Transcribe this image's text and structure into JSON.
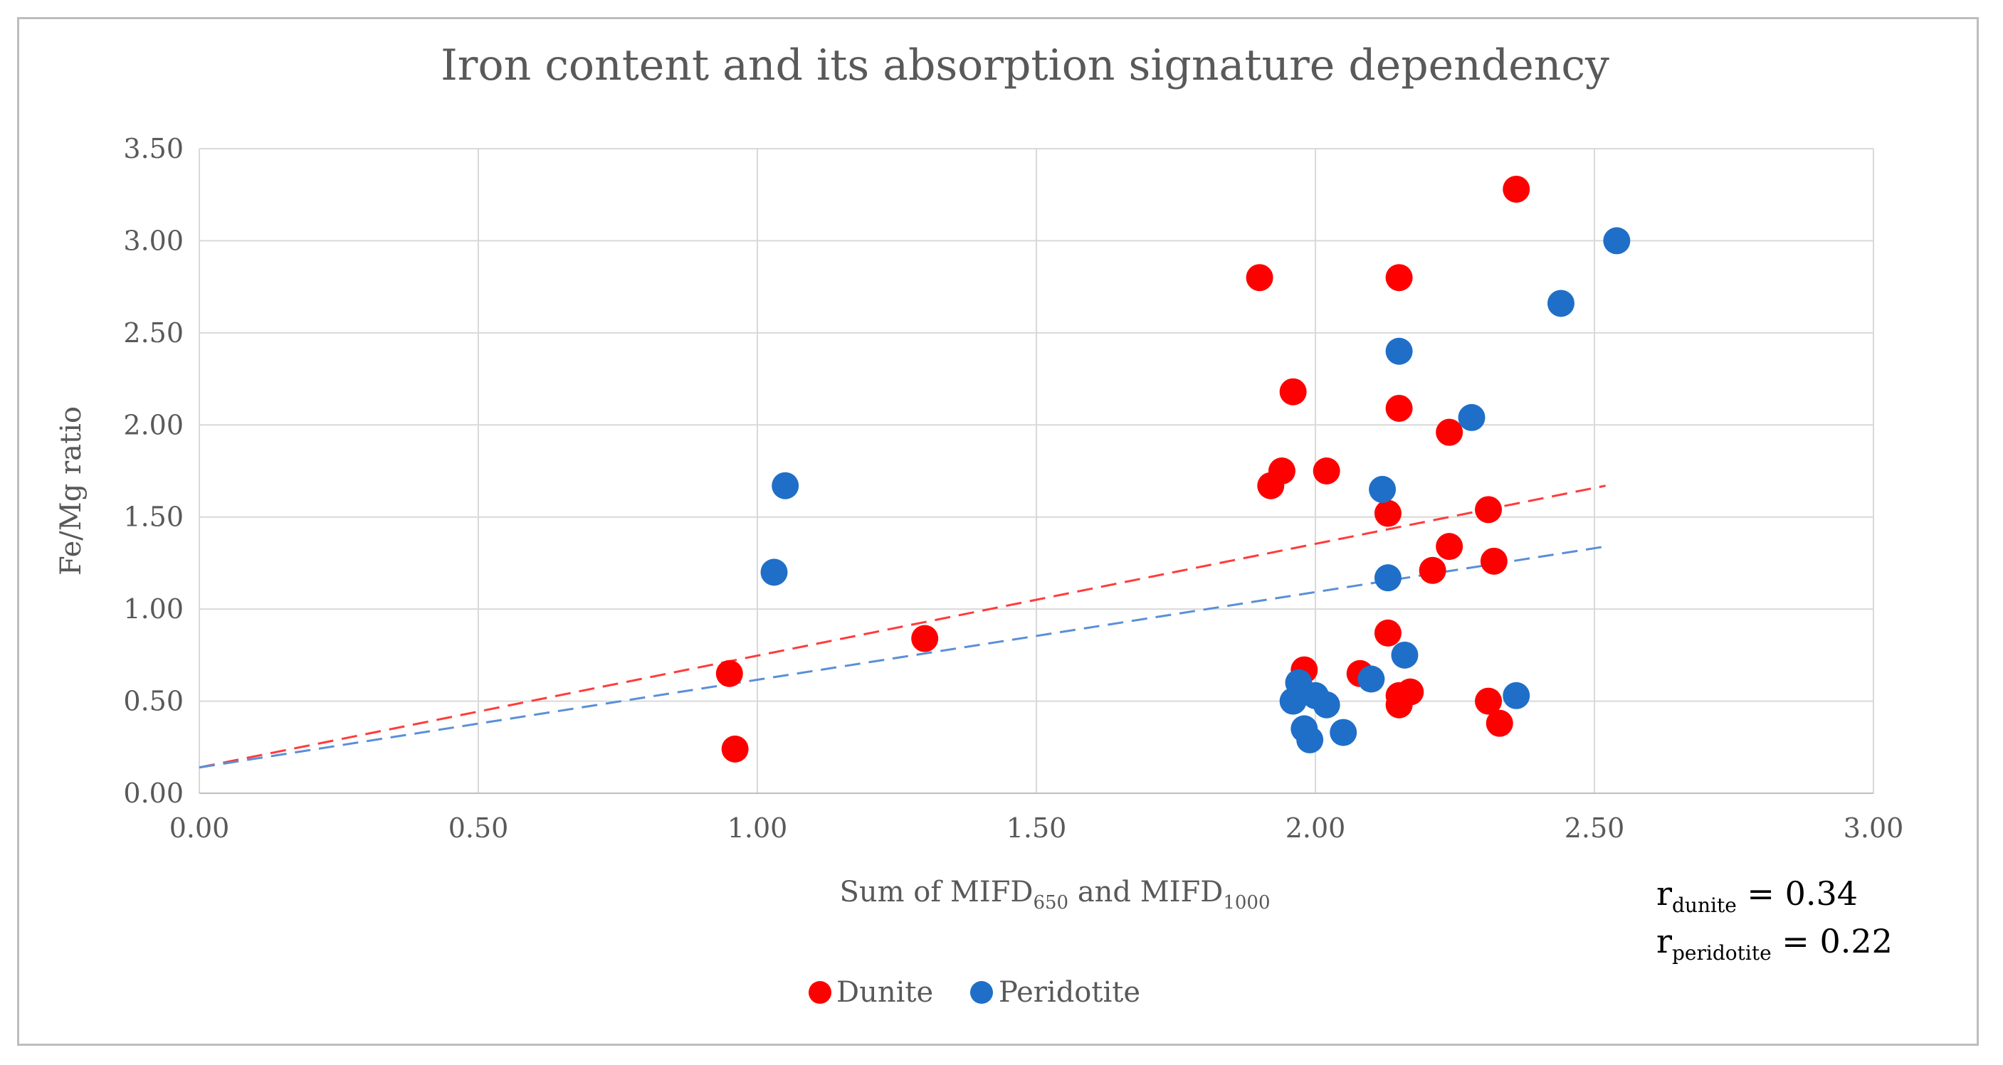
{
  "chart_data": {
    "type": "scatter",
    "title": "Iron content and its absorption signature dependency",
    "xlabel": {
      "main": "Sum of MIFD",
      "sub1": "650",
      "mid": " and MIFD",
      "sub2": "1000"
    },
    "ylabel": "Fe/Mg ratio",
    "xlim": [
      0,
      3.0
    ],
    "ylim": [
      0,
      3.5
    ],
    "xticks": [
      "0.00",
      "0.50",
      "1.00",
      "1.50",
      "2.00",
      "2.50",
      "3.00"
    ],
    "yticks": [
      "0.00",
      "0.50",
      "1.00",
      "1.50",
      "2.00",
      "2.50",
      "3.00",
      "3.50"
    ],
    "xtick_values": [
      0,
      0.5,
      1.0,
      1.5,
      2.0,
      2.5,
      3.0
    ],
    "ytick_values": [
      0,
      0.5,
      1.0,
      1.5,
      2.0,
      2.5,
      3.0,
      3.5
    ],
    "grid": true,
    "legend_position": "bottom-center",
    "series": [
      {
        "name": "Dunite",
        "color": "#ff0000",
        "points": [
          [
            0.95,
            0.65
          ],
          [
            0.96,
            0.24
          ],
          [
            1.3,
            0.84
          ],
          [
            1.9,
            2.8
          ],
          [
            1.92,
            1.67
          ],
          [
            1.94,
            1.75
          ],
          [
            1.96,
            2.18
          ],
          [
            1.98,
            0.67
          ],
          [
            2.02,
            1.75
          ],
          [
            2.08,
            0.65
          ],
          [
            2.13,
            0.87
          ],
          [
            2.13,
            1.52
          ],
          [
            2.15,
            2.8
          ],
          [
            2.15,
            2.09
          ],
          [
            2.15,
            0.53
          ],
          [
            2.15,
            0.48
          ],
          [
            2.17,
            0.55
          ],
          [
            2.21,
            1.21
          ],
          [
            2.24,
            1.34
          ],
          [
            2.24,
            1.96
          ],
          [
            2.31,
            1.54
          ],
          [
            2.31,
            0.5
          ],
          [
            2.32,
            1.26
          ],
          [
            2.33,
            0.38
          ],
          [
            2.36,
            3.28
          ]
        ],
        "trend": {
          "x": [
            0,
            2.52
          ],
          "y": [
            0.14,
            1.67
          ],
          "color": "#ff3b3b"
        }
      },
      {
        "name": "Peridotite",
        "color": "#1f6fc9",
        "points": [
          [
            1.03,
            1.2
          ],
          [
            1.05,
            1.67
          ],
          [
            1.96,
            0.5
          ],
          [
            1.97,
            0.6
          ],
          [
            1.98,
            0.35
          ],
          [
            1.99,
            0.29
          ],
          [
            2.0,
            0.53
          ],
          [
            2.02,
            0.48
          ],
          [
            2.05,
            0.33
          ],
          [
            2.1,
            0.62
          ],
          [
            2.12,
            1.65
          ],
          [
            2.13,
            1.17
          ],
          [
            2.15,
            2.4
          ],
          [
            2.16,
            0.75
          ],
          [
            2.28,
            2.04
          ],
          [
            2.36,
            0.53
          ],
          [
            2.44,
            2.66
          ],
          [
            2.54,
            3.0
          ]
        ],
        "trend": {
          "x": [
            0,
            2.52
          ],
          "y": [
            0.14,
            1.34
          ],
          "color": "#5a8fd8"
        }
      }
    ],
    "annotations": [
      {
        "main": "r",
        "sub": "dunite",
        "rest": " = 0.34"
      },
      {
        "main": "r",
        "sub": "peridotite",
        "rest": " = 0.22"
      }
    ]
  }
}
